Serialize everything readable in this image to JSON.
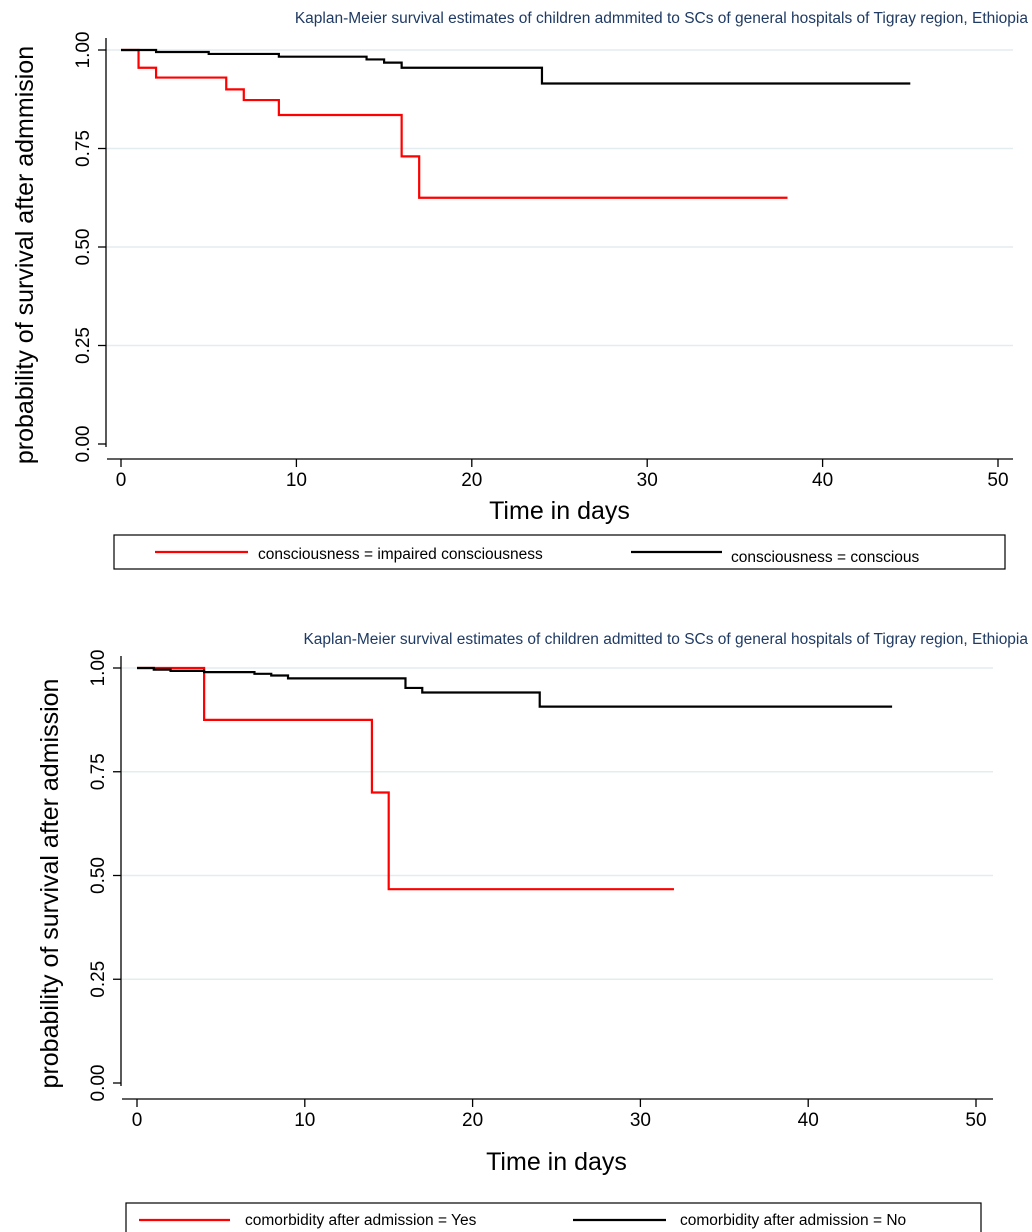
{
  "chart_data": [
    {
      "type": "line",
      "step": true,
      "title": "Kaplan-Meier survival estimates of children admmited to SCs of general hospitals of Tigray region, Ethiopia",
      "xlabel": "Time in days",
      "ylabel": "probability of survival after admmision",
      "xlim": [
        0,
        50
      ],
      "ylim": [
        0,
        1
      ],
      "xticks": [
        "0",
        "10",
        "20",
        "30",
        "40",
        "50"
      ],
      "yticks": [
        "0.00",
        "0.25",
        "0.50",
        "0.75",
        "1.00"
      ],
      "grid": true,
      "legend_position": "bottom",
      "series": [
        {
          "name": "consciousness = impaired consciousness",
          "color": "#ff0000",
          "x": [
            0,
            1,
            2,
            6,
            7,
            9,
            16,
            17,
            38
          ],
          "y": [
            1.0,
            0.955,
            0.93,
            0.9,
            0.873,
            0.835,
            0.73,
            0.625,
            0.625
          ]
        },
        {
          "name": "consciousness = conscious",
          "color": "#000000",
          "x": [
            0,
            2,
            5,
            9,
            14,
            15,
            16,
            24,
            45
          ],
          "y": [
            1.0,
            0.995,
            0.99,
            0.983,
            0.976,
            0.968,
            0.955,
            0.915,
            0.915
          ]
        }
      ]
    },
    {
      "type": "line",
      "step": true,
      "title": "Kaplan-Meier survival estimates of children admitted to SCs of general hospitals of Tigray region, Ethiopia",
      "xlabel": "Time in days",
      "ylabel": "probability of survival after admission",
      "xlim": [
        0,
        50
      ],
      "ylim": [
        0,
        1
      ],
      "xticks": [
        "0",
        "10",
        "20",
        "30",
        "40",
        "50"
      ],
      "yticks": [
        "0.00",
        "0.25",
        "0.50",
        "0.75",
        "1.00"
      ],
      "grid": true,
      "legend_position": "bottom",
      "series": [
        {
          "name": "comorbidity after admission = Yes",
          "color": "#ff0000",
          "x": [
            0,
            4,
            14,
            15,
            32
          ],
          "y": [
            1.0,
            0.875,
            0.7,
            0.467,
            0.467
          ]
        },
        {
          "name": "comorbidity after admission = No",
          "color": "#000000",
          "x": [
            0,
            1,
            2,
            4,
            7,
            8,
            9,
            16,
            17,
            24,
            45
          ],
          "y": [
            1.0,
            0.996,
            0.993,
            0.99,
            0.986,
            0.982,
            0.975,
            0.952,
            0.941,
            0.907,
            0.907
          ]
        }
      ]
    }
  ]
}
